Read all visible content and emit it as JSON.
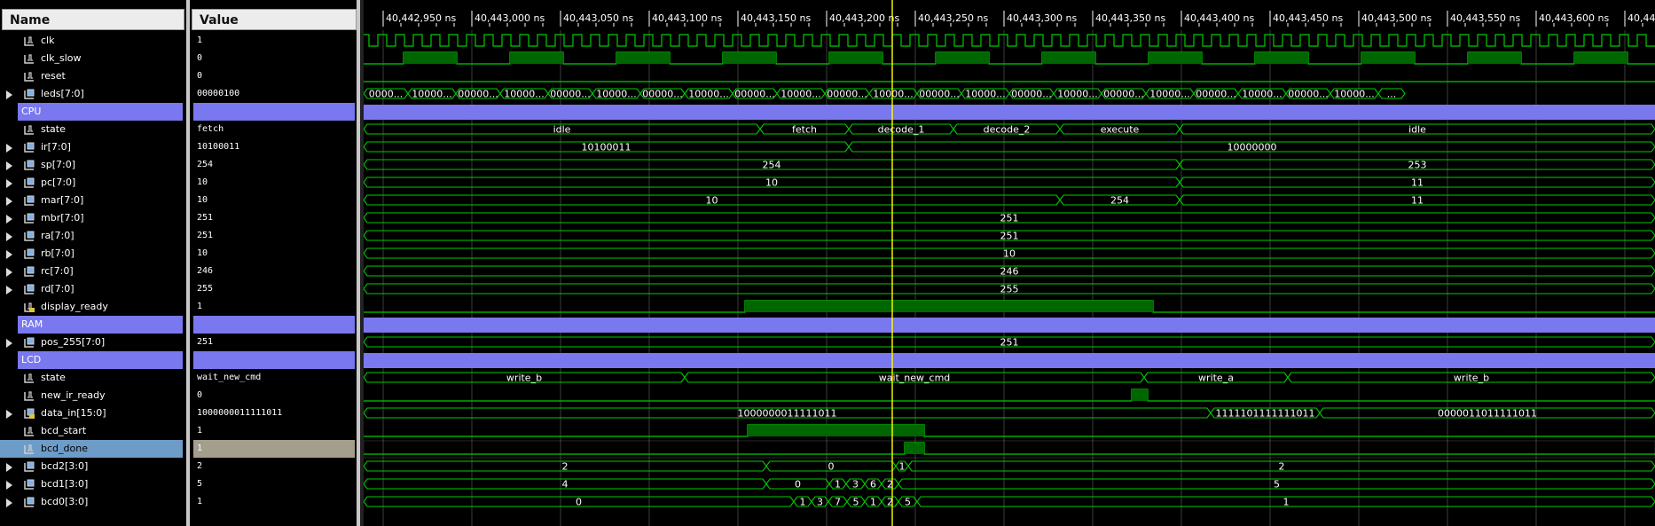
{
  "panels": {
    "name_header": "Name",
    "value_header": "Value"
  },
  "timeline": {
    "ticks": [
      "40,442,950 ns",
      "40,443,000 ns",
      "40,443,050 ns",
      "40,443,100 ns",
      "40,443,150 ns",
      "40,443,200 ns",
      "40,443,250 ns",
      "40,443,300 ns",
      "40,443,350 ns",
      "40,443,400 ns",
      "40,443,450 ns",
      "40,443,500 ns",
      "40,443,550 ns",
      "40,443,600 ns",
      "40,443"
    ],
    "cursor_time_ns": 40443237
  },
  "colors": {
    "wave": "#00cc00",
    "cursor": "#ffff00",
    "group": "#7a78ee",
    "selected": "#6e9cc8"
  },
  "signals": [
    {
      "name": "clk",
      "value": "1",
      "kind": "bit",
      "icon": "signal-icon"
    },
    {
      "name": "clk_slow",
      "value": "0",
      "kind": "bit",
      "icon": "signal-icon"
    },
    {
      "name": "reset",
      "value": "0",
      "kind": "bit",
      "icon": "signal-icon"
    },
    {
      "name": "leds[7:0]",
      "value": "00000100",
      "kind": "bus",
      "expandable": true,
      "icon": "bus-icon",
      "labels": [
        "0000...",
        "10000...",
        "00000...",
        "10000...",
        "00000...",
        "10000...",
        "00000...",
        "10000...",
        "00000...",
        "10000...",
        "00000...",
        "10000...",
        "00000...",
        "10000...",
        "00000...",
        "10000...",
        "00000...",
        "10000...",
        "00000...",
        "10000...",
        "00000...",
        "10000...",
        "..."
      ]
    },
    {
      "name": "CPU",
      "value": "",
      "kind": "group"
    },
    {
      "name": "state",
      "value": "fetch",
      "kind": "bus",
      "icon": "signal-icon",
      "labels": [
        "idle",
        "fetch",
        "decode_1",
        "decode_2",
        "execute",
        "idle"
      ]
    },
    {
      "name": "ir[7:0]",
      "value": "10100011",
      "kind": "bus",
      "expandable": true,
      "icon": "bus-icon",
      "labels": [
        "10100011",
        "10000000"
      ]
    },
    {
      "name": "sp[7:0]",
      "value": "254",
      "kind": "bus",
      "expandable": true,
      "icon": "bus-icon",
      "labels": [
        "254",
        "253"
      ]
    },
    {
      "name": "pc[7:0]",
      "value": "10",
      "kind": "bus",
      "expandable": true,
      "icon": "bus-icon",
      "labels": [
        "10",
        "11"
      ]
    },
    {
      "name": "mar[7:0]",
      "value": "10",
      "kind": "bus",
      "expandable": true,
      "icon": "bus-icon",
      "labels": [
        "10",
        "254",
        "11"
      ]
    },
    {
      "name": "mbr[7:0]",
      "value": "251",
      "kind": "bus",
      "expandable": true,
      "icon": "bus-icon",
      "labels": [
        "251"
      ]
    },
    {
      "name": "ra[7:0]",
      "value": "251",
      "kind": "bus",
      "expandable": true,
      "icon": "bus-icon",
      "labels": [
        "251"
      ]
    },
    {
      "name": "rb[7:0]",
      "value": "10",
      "kind": "bus",
      "expandable": true,
      "icon": "bus-icon",
      "labels": [
        "10"
      ]
    },
    {
      "name": "rc[7:0]",
      "value": "246",
      "kind": "bus",
      "expandable": true,
      "icon": "bus-icon",
      "labels": [
        "246"
      ]
    },
    {
      "name": "rd[7:0]",
      "value": "255",
      "kind": "bus",
      "expandable": true,
      "icon": "bus-icon",
      "labels": [
        "255"
      ]
    },
    {
      "name": "display_ready",
      "value": "1",
      "kind": "bit",
      "icon": "lock-signal-icon"
    },
    {
      "name": "RAM",
      "value": "",
      "kind": "group"
    },
    {
      "name": "pos_255[7:0]",
      "value": "251",
      "kind": "bus",
      "expandable": true,
      "icon": "bus-icon",
      "labels": [
        "251"
      ]
    },
    {
      "name": "LCD",
      "value": "",
      "kind": "group"
    },
    {
      "name": "state",
      "value": "wait_new_cmd",
      "kind": "bus",
      "icon": "signal-icon",
      "labels": [
        "write_b",
        "wait_new_cmd",
        "write_a",
        "write_b"
      ]
    },
    {
      "name": "new_ir_ready",
      "value": "0",
      "kind": "bit",
      "icon": "signal-icon"
    },
    {
      "name": "data_in[15:0]",
      "value": "1000000011111011",
      "kind": "bus",
      "expandable": true,
      "icon": "lock-bus-icon",
      "labels": [
        "1000000011111011",
        "1111101111111011",
        "0000011011111011"
      ]
    },
    {
      "name": "bcd_start",
      "value": "1",
      "kind": "bit",
      "icon": "signal-icon"
    },
    {
      "name": "bcd_done",
      "value": "1",
      "kind": "bit",
      "icon": "signal-icon",
      "selected": true
    },
    {
      "name": "bcd2[3:0]",
      "value": "2",
      "kind": "bus",
      "expandable": true,
      "icon": "bus-icon",
      "labels": [
        "2",
        "0",
        "1",
        "2"
      ]
    },
    {
      "name": "bcd1[3:0]",
      "value": "5",
      "kind": "bus",
      "expandable": true,
      "icon": "bus-icon",
      "labels": [
        "4",
        "0",
        "1",
        "3",
        "6",
        "2",
        "5"
      ]
    },
    {
      "name": "bcd0[3:0]",
      "value": "1",
      "kind": "bus",
      "expandable": true,
      "icon": "bus-icon",
      "labels": [
        "0",
        "1",
        "3",
        "7",
        "5",
        "1",
        "2",
        "5",
        "1"
      ]
    }
  ]
}
